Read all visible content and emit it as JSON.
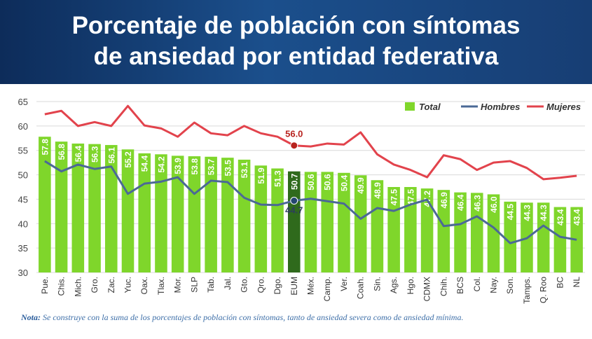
{
  "chart_data": {
    "type": "bar-line",
    "title": [
      "Porcentaje de población con síntomas",
      "de ansiedad por entidad federativa"
    ],
    "categories": [
      "Pue.",
      "Chis.",
      "Mich.",
      "Gro.",
      "Zac.",
      "Yuc.",
      "Oax.",
      "Tlax.",
      "Mor.",
      "SLP",
      "Tab.",
      "Jal.",
      "Gto.",
      "Qro.",
      "Dgo.",
      "EUM",
      "Méx.",
      "Camp.",
      "Ver.",
      "Coah.",
      "Sin.",
      "Ags.",
      "Hgo.",
      "CDMX",
      "Chih.",
      "BCS",
      "Col.",
      "Nay.",
      "Son.",
      "Tamps.",
      "Q. Roo",
      "BC",
      "NL"
    ],
    "series": [
      {
        "name": "Total",
        "type": "bar",
        "color": "#7fd62b",
        "highlight_index": 15,
        "highlight_color": "#2f6a1c",
        "values": [
          57.8,
          56.8,
          56.4,
          56.3,
          56.1,
          55.2,
          54.4,
          54.2,
          53.9,
          53.8,
          53.7,
          53.5,
          53.1,
          51.9,
          51.3,
          50.7,
          50.6,
          50.6,
          50.4,
          49.9,
          48.9,
          47.5,
          47.5,
          47.2,
          46.9,
          46.4,
          46.3,
          46.0,
          44.5,
          44.3,
          44.3,
          43.4,
          43.4
        ],
        "value_labels": [
          "57.8",
          "56.8",
          "56.4",
          "56.3",
          "56.1",
          "55.2",
          "54.4",
          "54.2",
          "53.9",
          "53.8",
          "53.7",
          "53.5",
          "53.1",
          "51.9",
          "51.3",
          "50.7",
          "50.6",
          "50.6",
          "50.4",
          "49.9",
          "48.9",
          "47.5",
          "47.5",
          "47.2",
          "46.9",
          "46.4",
          "46.3",
          "46.0",
          "44.5",
          "44.3",
          "44.3",
          "43.4",
          "43.4"
        ]
      },
      {
        "name": "Hombres",
        "type": "line",
        "color": "#4b6996",
        "marker_color": "#24466f",
        "label_index": 15,
        "values": [
          52.8,
          50.7,
          52.1,
          51.2,
          51.7,
          46.1,
          48.2,
          48.6,
          49.5,
          46.1,
          48.8,
          48.5,
          45.3,
          43.9,
          43.8,
          44.7,
          45.1,
          44.6,
          44.1,
          41.0,
          43.2,
          42.6,
          43.9,
          44.9,
          39.5,
          39.9,
          41.5,
          39.2,
          36.0,
          37.0,
          39.6,
          37.3,
          36.7
        ]
      },
      {
        "name": "Mujeres",
        "type": "line",
        "color": "#e2434c",
        "marker_color": "#b8231f",
        "label_index": 15,
        "values": [
          62.4,
          63.1,
          60.0,
          60.8,
          60.0,
          64.1,
          60.1,
          59.5,
          57.8,
          60.7,
          58.5,
          58.1,
          60.0,
          58.5,
          57.8,
          56.0,
          55.8,
          56.4,
          56.2,
          58.7,
          54.2,
          52.1,
          51.0,
          49.5,
          54.0,
          53.2,
          51.0,
          52.5,
          52.8,
          51.4,
          49.1,
          49.4,
          49.8
        ],
        "value_labels": [
          null,
          null,
          null,
          null,
          null,
          null,
          null,
          null,
          null,
          null,
          null,
          null,
          null,
          null,
          null,
          "56.0",
          null,
          null,
          null,
          null,
          null,
          null,
          null,
          null,
          null,
          null,
          null,
          null,
          null,
          null,
          null,
          null,
          null
        ]
      }
    ],
    "ylim": [
      30,
      65
    ],
    "yticks": [
      30,
      35,
      40,
      45,
      50,
      55,
      60,
      65
    ],
    "grid": true,
    "legend": "top-right",
    "note_label": "Nota:",
    "note": "Se construye con la suma de los porcentajes de población con síntomas, tanto de ansiedad severa como de ansiedad mínima."
  }
}
